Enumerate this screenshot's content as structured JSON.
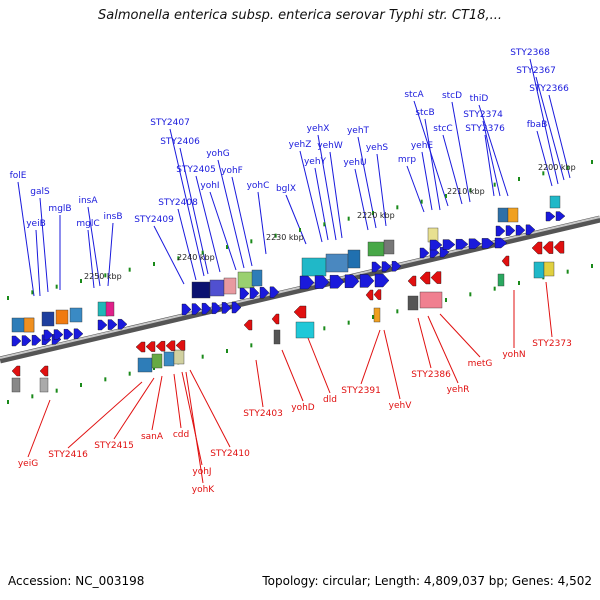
{
  "title": "Salmonella enterica subsp. enterica serovar Typhi str. CT18,...",
  "footer": {
    "accession": "Accession: NC_003198",
    "summary": "Topology: circular; Length: 4,809,037 bp; Genes: 4,502"
  },
  "colors": {
    "forward": "#1a1adc",
    "reverse": "#e01010",
    "backbone": "#8c8c8c",
    "tick": "#1a8a1a"
  },
  "scale_labels": [
    "2200 kbp",
    "2210 kbp",
    "2220 kbp",
    "2230 kbp",
    "2240 kbp",
    "2250 kbp"
  ],
  "forward_genes": [
    "folE",
    "yeiB",
    "galS",
    "mglB",
    "mglC",
    "insA",
    "insB",
    "STY2409",
    "STY2408",
    "STY2407",
    "STY2406",
    "STY2405",
    "yohI",
    "yohG",
    "yohF",
    "yohC",
    "bglX",
    "yehZ",
    "yehY",
    "yehX",
    "yehW",
    "yehU",
    "yehT",
    "yehS",
    "mrp",
    "yehE",
    "stcB",
    "stcA",
    "stcC",
    "stcD",
    "STY2376",
    "STY2374",
    "thiD",
    "fbaB",
    "STY2368",
    "STY2367",
    "STY2366"
  ],
  "reverse_genes": [
    "yeiG",
    "STY2416",
    "STY2415",
    "sanA",
    "cdd",
    "yohJ",
    "yohK",
    "STY2410",
    "STY2403",
    "yohD",
    "dld",
    "STY2391",
    "yehV",
    "STY2386",
    "yehR",
    "metG",
    "yohN",
    "STY2373"
  ]
}
